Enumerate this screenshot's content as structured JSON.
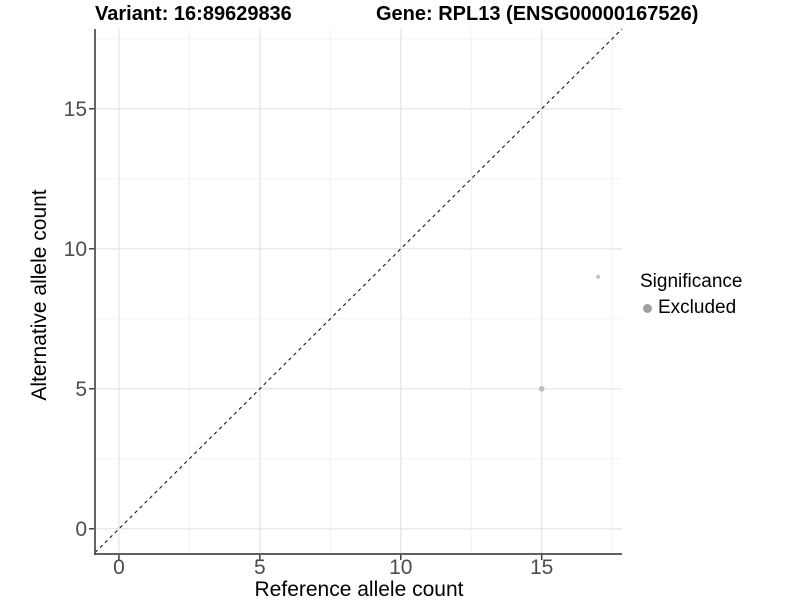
{
  "chart_data": {
    "type": "scatter",
    "titles": {
      "left": "Variant: 16:89629836",
      "right": "Gene: RPL13 (ENSG00000167526)"
    },
    "xlabel": "Reference allele count",
    "ylabel": "Alternative allele count",
    "xlim": [
      -0.85,
      17.85
    ],
    "ylim": [
      -0.9,
      17.85
    ],
    "xticks": [
      0,
      5,
      10,
      15
    ],
    "yticks": [
      0,
      5,
      10,
      15
    ],
    "minor_tick_step": 2.5,
    "grid": {
      "major_color": "#e3e3e3",
      "minor_color": "#f0f0f0",
      "background": "#ffffff"
    },
    "axis": {
      "line_color": "#4a4a4a",
      "tick_color": "#333333",
      "tick_label_color": "#4d4d4d"
    },
    "reference_line": {
      "kind": "identity y = x",
      "style": "dashed",
      "color": "#1a1a1a"
    },
    "points": [
      {
        "x": 15,
        "y": 5,
        "significance": "Excluded",
        "color": "#bdbdbd",
        "radius": 2.8
      },
      {
        "x": 17,
        "y": 9,
        "significance": "Excluded",
        "color": "#c5c5c5",
        "radius": 2.1
      }
    ],
    "legend": {
      "title": "Significance",
      "position": "right",
      "entries": [
        {
          "label": "Excluded",
          "color": "#a0a0a0"
        }
      ]
    }
  }
}
